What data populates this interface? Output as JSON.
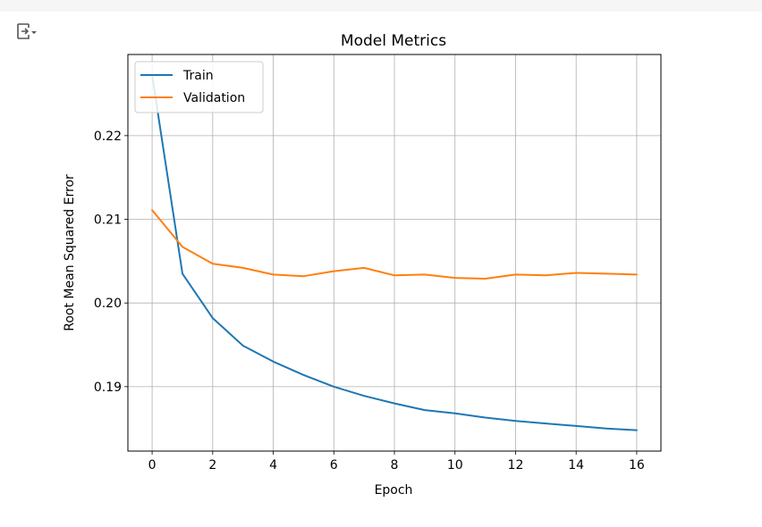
{
  "output_toggle": {
    "icon": "output-toggle-icon"
  },
  "chart_data": {
    "type": "line",
    "title": "Model Metrics",
    "xlabel": "Epoch",
    "ylabel": "Root Mean Squared Error",
    "x": [
      0,
      1,
      2,
      3,
      4,
      5,
      6,
      7,
      8,
      9,
      10,
      11,
      12,
      13,
      14,
      15,
      16
    ],
    "xlim": [
      -0.8,
      16.8
    ],
    "ylim": [
      0.1823,
      0.2297
    ],
    "xticks": [
      0,
      2,
      4,
      6,
      8,
      10,
      12,
      14,
      16
    ],
    "xtick_labels": [
      "0",
      "2",
      "4",
      "6",
      "8",
      "10",
      "12",
      "14",
      "16"
    ],
    "yticks": [
      0.19,
      0.2,
      0.21,
      0.22
    ],
    "ytick_labels": [
      "0.19",
      "0.20",
      "0.21",
      "0.22"
    ],
    "grid": true,
    "legend_position": "upper left",
    "series": [
      {
        "name": "Train",
        "color": "#1f77b4",
        "values": [
          0.2272,
          0.2035,
          0.1982,
          0.1949,
          0.193,
          0.1914,
          0.19,
          0.1889,
          0.188,
          0.1872,
          0.1868,
          0.1863,
          0.1859,
          0.1856,
          0.1853,
          0.185,
          0.1848
        ]
      },
      {
        "name": "Validation",
        "color": "#ff7f0e",
        "values": [
          0.2111,
          0.2067,
          0.2047,
          0.2042,
          0.2034,
          0.2032,
          0.2038,
          0.2042,
          0.2033,
          0.2034,
          0.203,
          0.2029,
          0.2034,
          0.2033,
          0.2036,
          0.2035,
          0.2034
        ]
      }
    ]
  }
}
